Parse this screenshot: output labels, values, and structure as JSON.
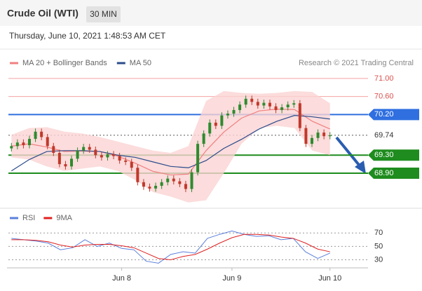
{
  "header": {
    "title": "Crude Oil (WTI)",
    "timeframe": "30 MIN",
    "timestamp": "Thursday, June 10, 2021 1:48:53 AM CET",
    "source": "Research © 2021 Trading Central"
  },
  "chart_data": [
    {
      "type": "candlestick",
      "up_color": "#2e8b2e",
      "down_color": "#c0392b",
      "ylim": [
        68.2,
        71.2
      ],
      "open": [
        69.45,
        69.5,
        69.58,
        69.52,
        69.66,
        69.82,
        69.7,
        69.5,
        69.35,
        69.1,
        69.05,
        69.22,
        69.4,
        69.48,
        69.42,
        69.3,
        69.25,
        69.32,
        69.28,
        69.18,
        69.15,
        69.02,
        68.7,
        68.6,
        68.56,
        68.62,
        68.7,
        68.78,
        68.72,
        68.66,
        68.55,
        68.92,
        69.55,
        69.78,
        70.02,
        69.95,
        70.18,
        70.22,
        70.3,
        70.42,
        70.55,
        70.48,
        70.4,
        70.46,
        70.38,
        70.3,
        70.36,
        70.42,
        70.45,
        69.9,
        69.55,
        69.68,
        69.8,
        69.72
      ],
      "high": [
        69.57,
        69.65,
        69.65,
        69.73,
        69.89,
        69.89,
        69.77,
        69.57,
        69.42,
        69.17,
        69.29,
        69.47,
        69.55,
        69.55,
        69.49,
        69.37,
        69.39,
        69.39,
        69.35,
        69.25,
        69.22,
        69.09,
        68.77,
        68.67,
        68.69,
        68.77,
        68.85,
        68.85,
        68.79,
        68.73,
        68.99,
        69.62,
        69.85,
        70.09,
        70.09,
        70.25,
        70.29,
        70.37,
        70.49,
        70.62,
        70.62,
        70.55,
        70.53,
        70.53,
        70.45,
        70.43,
        70.49,
        70.52,
        70.52,
        69.97,
        69.75,
        69.87,
        69.87,
        69.81
      ],
      "low": [
        69.38,
        69.43,
        69.45,
        69.45,
        69.59,
        69.63,
        69.43,
        69.28,
        69.03,
        68.98,
        68.98,
        69.15,
        69.33,
        69.35,
        69.23,
        69.18,
        69.18,
        69.21,
        69.11,
        69.08,
        68.95,
        68.63,
        68.53,
        68.49,
        68.49,
        68.55,
        68.63,
        68.65,
        68.59,
        68.48,
        68.48,
        68.85,
        69.48,
        69.71,
        69.88,
        69.88,
        70.11,
        70.15,
        70.23,
        70.35,
        70.41,
        70.33,
        70.33,
        70.31,
        70.23,
        70.23,
        70.29,
        70.35,
        69.83,
        69.48,
        69.48,
        69.61,
        69.65,
        69.65
      ],
      "close": [
        69.5,
        69.58,
        69.52,
        69.66,
        69.82,
        69.7,
        69.5,
        69.35,
        69.1,
        69.05,
        69.22,
        69.4,
        69.48,
        69.42,
        69.3,
        69.25,
        69.32,
        69.28,
        69.18,
        69.15,
        69.02,
        68.7,
        68.6,
        68.56,
        68.62,
        68.7,
        68.78,
        68.72,
        68.66,
        68.55,
        68.92,
        69.55,
        69.78,
        70.02,
        69.95,
        70.18,
        70.22,
        70.3,
        70.42,
        70.55,
        70.48,
        70.4,
        70.46,
        70.38,
        70.3,
        70.36,
        70.42,
        70.45,
        69.9,
        69.55,
        69.68,
        69.8,
        69.72,
        69.74
      ],
      "series": [
        {
          "name": "MA 20 + Bollinger Bands",
          "color": "#f08080",
          "band_color": "#fbd3d3",
          "values": [
            69.5,
            69.55,
            69.48,
            69.38,
            69.39,
            69.38,
            69.28,
            69.12,
            68.94,
            68.86,
            68.88,
            69.4,
            69.81,
            70.12,
            70.28,
            70.32,
            70.31,
            70.05,
            69.88
          ],
          "upper": [
            69.75,
            69.9,
            69.92,
            69.82,
            69.78,
            69.7,
            69.6,
            69.5,
            69.4,
            69.35,
            69.5,
            70.5,
            70.72,
            70.68,
            70.66,
            70.68,
            70.72,
            70.7,
            70.45
          ],
          "lower": [
            69.25,
            69.2,
            69.05,
            68.95,
            69.0,
            69.05,
            68.95,
            68.75,
            68.48,
            68.38,
            68.25,
            68.3,
            68.9,
            69.55,
            69.9,
            69.95,
            69.9,
            69.4,
            69.3
          ]
        },
        {
          "name": "MA 50",
          "color": "#2b4c8c",
          "values": [
            68.95,
            69.2,
            69.38,
            69.4,
            69.4,
            69.38,
            69.3,
            69.25,
            69.15,
            69.05,
            69.02,
            69.18,
            69.45,
            69.65,
            69.88,
            70.05,
            70.18,
            70.15,
            70.1
          ]
        }
      ],
      "levels": [
        {
          "tick": {
            "value": 71.0,
            "label": "71.00"
          },
          "color": "#f4a3a3",
          "text_color": "#d9534f",
          "style": "text"
        },
        {
          "tick": {
            "value": 70.6,
            "label": "70.60"
          },
          "color": "#f4a3a3",
          "text_color": "#d9534f",
          "style": "text"
        },
        {
          "tick": {
            "value": 70.2,
            "label": "70.20"
          },
          "color": "#2f6fe0",
          "text_color": "#ffffff",
          "style": "tag"
        },
        {
          "tick": 69.74,
          "color": "#555555",
          "text_color": "#333333",
          "style": "dotted"
        },
        {
          "tick": {
            "value": 69.3,
            "label": "69.30"
          },
          "color": "#1e8c1e",
          "text_color": "#ffffff",
          "style": "tag"
        },
        {
          "tick": {
            "value": 68.9,
            "label": "68.90"
          },
          "color": "#1e8c1e",
          "text_color": "#ffffff",
          "style": "tag"
        }
      ]
    },
    {
      "type": "line",
      "ylim": [
        18,
        86
      ],
      "yticks": [
        70,
        50,
        30
      ],
      "categories": [
        null,
        null,
        null,
        null,
        null,
        null,
        null,
        null,
        null,
        "Jun 8",
        null,
        null,
        null,
        null,
        null,
        null,
        null,
        null,
        "Jun 9",
        null,
        null,
        null,
        null,
        null,
        null,
        null,
        "Jun 10"
      ],
      "series": [
        {
          "name": "RSI",
          "color": "#5b7fdb",
          "values": [
            62,
            60,
            58,
            55,
            45,
            48,
            60,
            50,
            55,
            47,
            45,
            28,
            25,
            38,
            42,
            40,
            62,
            68,
            73,
            68,
            65,
            66,
            60,
            62,
            42,
            32,
            40
          ]
        },
        {
          "name": "9MA",
          "color": "#e02020",
          "values": [
            60,
            60,
            59,
            57,
            52,
            49,
            52,
            53,
            53,
            51,
            48,
            40,
            32,
            30,
            35,
            38,
            46,
            55,
            63,
            68,
            68,
            67,
            64,
            62,
            55,
            46,
            42
          ]
        }
      ]
    }
  ]
}
